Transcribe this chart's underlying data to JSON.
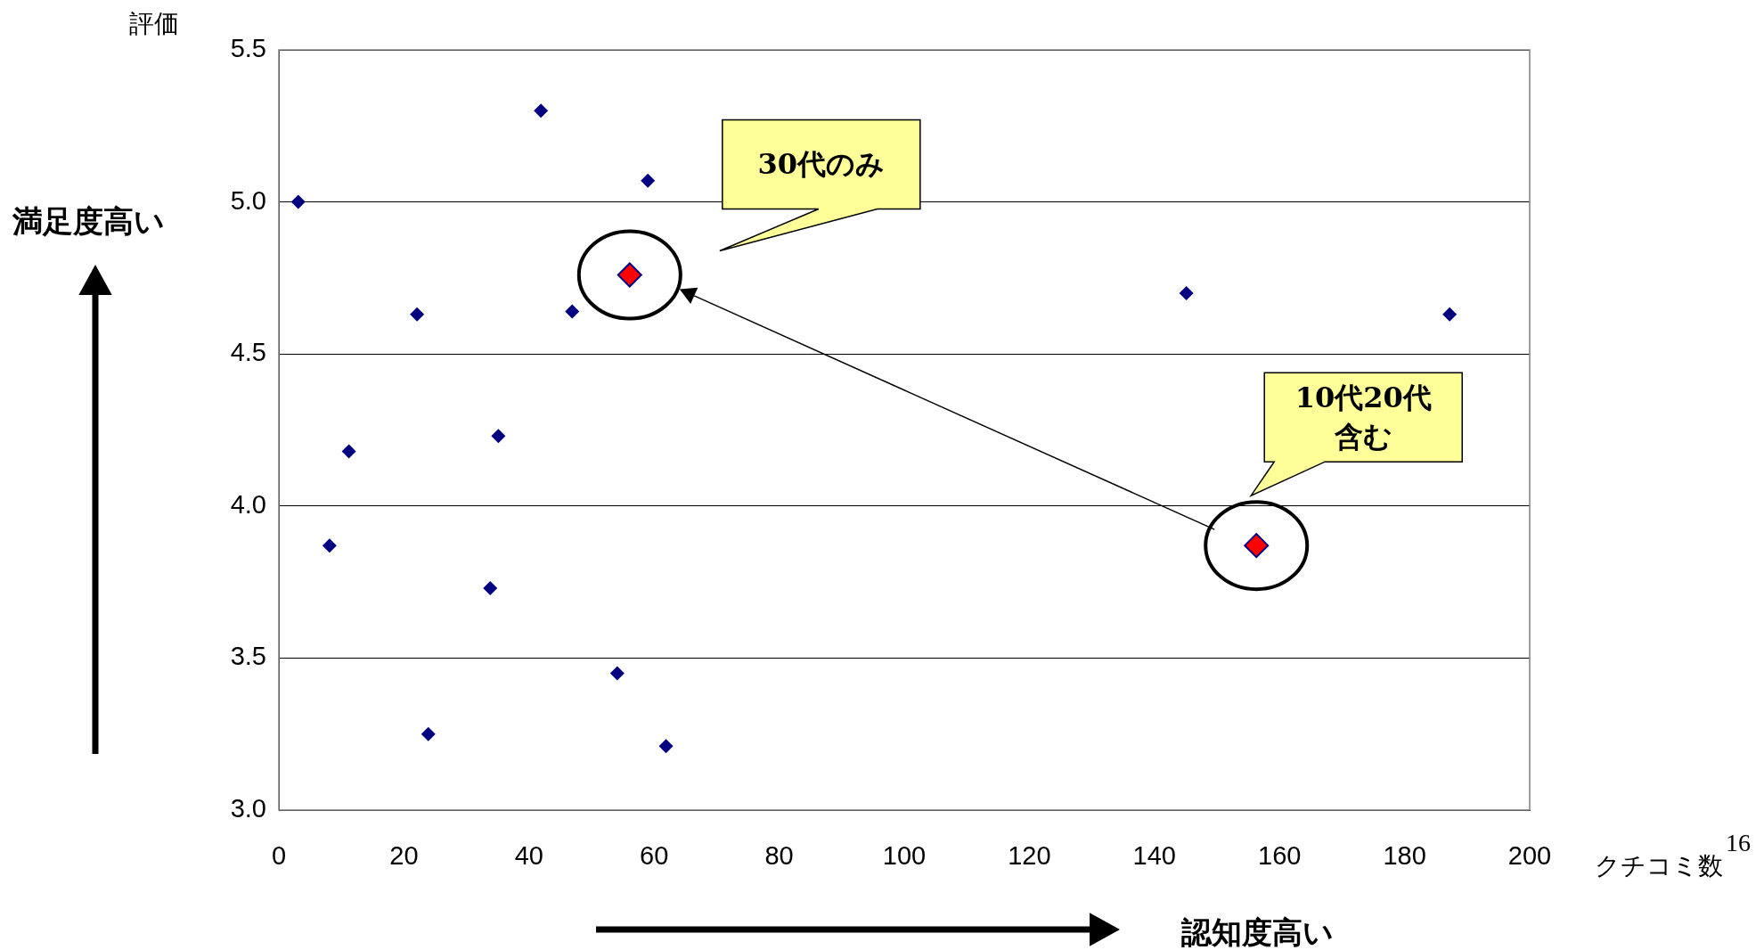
{
  "chart_data": {
    "type": "scatter",
    "xlabel": "クチコミ数",
    "ylabel": "評価",
    "xlim": [
      0,
      200
    ],
    "xticks": [
      0,
      20,
      40,
      60,
      80,
      100,
      120,
      140,
      160,
      180,
      200
    ],
    "ylim": [
      3.0,
      5.5
    ],
    "yticks": [
      {
        "value": 3.0,
        "label": "3.0"
      },
      {
        "value": 3.5,
        "label": "3.5"
      },
      {
        "value": 4.0,
        "label": "4.0"
      },
      {
        "value": 4.5,
        "label": "4.5"
      },
      {
        "value": 5.0,
        "label": "5.0"
      },
      {
        "value": 5.5,
        "label": "5.5"
      }
    ],
    "grid": "y",
    "legend": false,
    "marker": "diamond",
    "series": [
      {
        "color": "#000080",
        "x": [
          3.1,
          41.9,
          59,
          22.1,
          46.9,
          11.2,
          35.1,
          8.1,
          33.8,
          54.1,
          23.9,
          61.9,
          145.1,
          187.2
        ],
        "values": [
          5.0,
          5.3,
          5.07,
          4.63,
          4.64,
          4.18,
          4.23,
          3.87,
          3.73,
          3.45,
          3.25,
          3.21,
          4.7,
          4.63
        ]
      },
      {
        "color": "#ff0000",
        "x": [
          56.1,
          156.3
        ],
        "values": [
          4.76,
          3.87
        ]
      }
    ],
    "annotations": [
      "満足度高い",
      "認知度高い",
      "30代のみ",
      "10代20代含む",
      "16"
    ]
  }
}
